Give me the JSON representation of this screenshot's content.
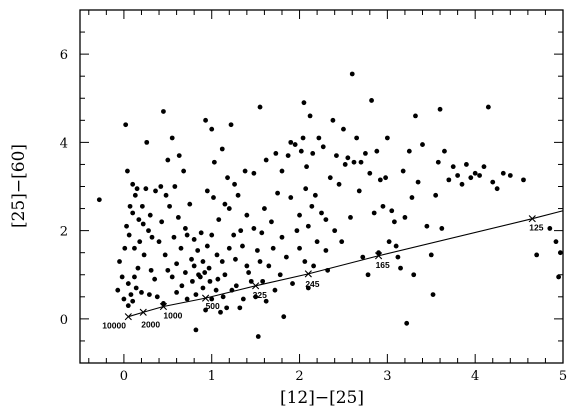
{
  "chart_data": {
    "type": "scatter",
    "title": "",
    "xlabel": "[12]−[25]",
    "ylabel": "[25]−[60]",
    "xlim": [
      -0.5,
      5
    ],
    "ylim": [
      -1,
      7
    ],
    "xticks": [
      0,
      1,
      2,
      3,
      4,
      5
    ],
    "yticks": [
      0,
      2,
      4,
      6
    ],
    "grid": false,
    "legend": "none",
    "points": [
      [
        -0.28,
        2.7
      ],
      [
        -0.07,
        0.65
      ],
      [
        -0.05,
        1.3
      ],
      [
        -0.02,
        0.95
      ],
      [
        0.0,
        0.45
      ],
      [
        0.01,
        1.6
      ],
      [
        0.02,
        4.4
      ],
      [
        0.03,
        2.1
      ],
      [
        0.04,
        3.35
      ],
      [
        0.05,
        0.3
      ],
      [
        0.05,
        0.8
      ],
      [
        0.06,
        1.9
      ],
      [
        0.07,
        2.55
      ],
      [
        0.08,
        0.55
      ],
      [
        0.1,
        0.4
      ],
      [
        0.1,
        2.4
      ],
      [
        0.1,
        3.05
      ],
      [
        0.12,
        0.95
      ],
      [
        0.12,
        1.6
      ],
      [
        0.13,
        2.8
      ],
      [
        0.14,
        0.7
      ],
      [
        0.15,
        2.95
      ],
      [
        0.16,
        1.15
      ],
      [
        0.17,
        2.25
      ],
      [
        0.18,
        1.75
      ],
      [
        0.2,
        0.6
      ],
      [
        0.21,
        2.55
      ],
      [
        0.22,
        2.15
      ],
      [
        0.23,
        1.45
      ],
      [
        0.25,
        2.95
      ],
      [
        0.26,
        4.0
      ],
      [
        0.28,
        2.0
      ],
      [
        0.29,
        0.55
      ],
      [
        0.3,
        2.35
      ],
      [
        0.31,
        1.1
      ],
      [
        0.32,
        1.85
      ],
      [
        0.35,
        0.9
      ],
      [
        0.36,
        2.9
      ],
      [
        0.38,
        0.5
      ],
      [
        0.4,
        1.75
      ],
      [
        0.42,
        3.0
      ],
      [
        0.43,
        2.2
      ],
      [
        0.45,
        4.7
      ],
      [
        0.45,
        0.35
      ],
      [
        0.47,
        1.45
      ],
      [
        0.48,
        2.8
      ],
      [
        0.5,
        1.1
      ],
      [
        0.5,
        3.6
      ],
      [
        0.52,
        2.55
      ],
      [
        0.55,
        0.95
      ],
      [
        0.55,
        4.1
      ],
      [
        0.57,
        1.85
      ],
      [
        0.58,
        3.0
      ],
      [
        0.6,
        1.25
      ],
      [
        0.6,
        0.6
      ],
      [
        0.62,
        2.3
      ],
      [
        0.63,
        3.7
      ],
      [
        0.65,
        1.6
      ],
      [
        0.66,
        0.75
      ],
      [
        0.68,
        3.35
      ],
      [
        0.7,
        1.05
      ],
      [
        0.7,
        2.05
      ],
      [
        0.72,
        0.45
      ],
      [
        0.72,
        1.9
      ],
      [
        0.75,
        2.6
      ],
      [
        0.77,
        1.35
      ],
      [
        0.78,
        0.85
      ],
      [
        0.8,
        1.8
      ],
      [
        0.8,
        1.2
      ],
      [
        0.82,
        -0.25
      ],
      [
        0.82,
        0.55
      ],
      [
        0.84,
        1.55
      ],
      [
        0.85,
        1.0
      ],
      [
        0.87,
        0.95
      ],
      [
        0.88,
        1.95
      ],
      [
        0.9,
        1.3
      ],
      [
        0.9,
        0.7
      ],
      [
        0.92,
        1.05
      ],
      [
        0.93,
        0.2
      ],
      [
        0.93,
        4.5
      ],
      [
        0.95,
        2.9
      ],
      [
        0.95,
        1.65
      ],
      [
        0.97,
        1.15
      ],
      [
        0.98,
        0.85
      ],
      [
        1.0,
        4.3
      ],
      [
        1.0,
        0.45
      ],
      [
        1.0,
        1.9
      ],
      [
        1.02,
        2.75
      ],
      [
        1.03,
        3.55
      ],
      [
        1.05,
        0.65
      ],
      [
        1.06,
        1.45
      ],
      [
        1.07,
        0.9
      ],
      [
        1.08,
        2.25
      ],
      [
        1.1,
        0.15
      ],
      [
        1.12,
        3.85
      ],
      [
        1.12,
        1.3
      ],
      [
        1.13,
        0.5
      ],
      [
        1.15,
        2.6
      ],
      [
        1.15,
        1.0
      ],
      [
        1.17,
        0.25
      ],
      [
        1.18,
        3.2
      ],
      [
        1.2,
        2.5
      ],
      [
        1.2,
        1.6
      ],
      [
        1.22,
        4.4
      ],
      [
        1.23,
        0.65
      ],
      [
        1.25,
        1.9
      ],
      [
        1.26,
        3.05
      ],
      [
        1.27,
        1.35
      ],
      [
        1.28,
        0.75
      ],
      [
        1.3,
        2.8
      ],
      [
        1.32,
        0.25
      ],
      [
        1.33,
        2.0
      ],
      [
        1.35,
        1.65
      ],
      [
        1.36,
        0.45
      ],
      [
        1.38,
        3.35
      ],
      [
        1.4,
        2.35
      ],
      [
        1.4,
        1.2
      ],
      [
        1.42,
        1.05
      ],
      [
        1.45,
        0.85
      ],
      [
        1.48,
        3.3
      ],
      [
        1.48,
        2.05
      ],
      [
        1.5,
        0.5
      ],
      [
        1.52,
        1.55
      ],
      [
        1.53,
        -0.4
      ],
      [
        1.55,
        4.8
      ],
      [
        1.55,
        1.3
      ],
      [
        1.57,
        1.95
      ],
      [
        1.58,
        0.85
      ],
      [
        1.6,
        2.5
      ],
      [
        1.62,
        3.6
      ],
      [
        1.62,
        0.4
      ],
      [
        1.65,
        1.2
      ],
      [
        1.68,
        2.2
      ],
      [
        1.7,
        1.6
      ],
      [
        1.72,
        0.65
      ],
      [
        1.73,
        3.75
      ],
      [
        1.75,
        2.85
      ],
      [
        1.78,
        1.0
      ],
      [
        1.8,
        1.85
      ],
      [
        1.8,
        3.35
      ],
      [
        1.82,
        0.05
      ],
      [
        1.85,
        1.4
      ],
      [
        1.87,
        3.7
      ],
      [
        1.9,
        2.75
      ],
      [
        1.9,
        4.0
      ],
      [
        1.92,
        0.8
      ],
      [
        1.95,
        3.95
      ],
      [
        1.97,
        2.0
      ],
      [
        2.0,
        1.6
      ],
      [
        2.0,
        2.35
      ],
      [
        2.02,
        3.8
      ],
      [
        2.04,
        4.1
      ],
      [
        2.05,
        4.9
      ],
      [
        2.06,
        1.3
      ],
      [
        2.07,
        2.95
      ],
      [
        2.08,
        3.45
      ],
      [
        2.1,
        2.1
      ],
      [
        2.1,
        0.7
      ],
      [
        2.12,
        4.6
      ],
      [
        2.14,
        2.55
      ],
      [
        2.15,
        3.75
      ],
      [
        2.16,
        1.2
      ],
      [
        2.18,
        2.8
      ],
      [
        2.2,
        1.75
      ],
      [
        2.22,
        4.1
      ],
      [
        2.25,
        2.4
      ],
      [
        2.27,
        3.9
      ],
      [
        2.3,
        1.55
      ],
      [
        2.3,
        2.25
      ],
      [
        2.32,
        1.1
      ],
      [
        2.35,
        3.2
      ],
      [
        2.38,
        4.5
      ],
      [
        2.4,
        2.0
      ],
      [
        2.42,
        3.7
      ],
      [
        2.45,
        3.05
      ],
      [
        2.48,
        1.75
      ],
      [
        2.5,
        4.3
      ],
      [
        2.52,
        3.5
      ],
      [
        2.55,
        3.65
      ],
      [
        2.58,
        2.3
      ],
      [
        2.6,
        5.55
      ],
      [
        2.62,
        3.55
      ],
      [
        2.65,
        4.1
      ],
      [
        2.68,
        2.9
      ],
      [
        2.7,
        3.55
      ],
      [
        2.72,
        1.4
      ],
      [
        2.75,
        3.75
      ],
      [
        2.78,
        1.0
      ],
      [
        2.8,
        3.3
      ],
      [
        2.82,
        4.95
      ],
      [
        2.85,
        2.4
      ],
      [
        2.88,
        3.8
      ],
      [
        2.9,
        1.5
      ],
      [
        2.92,
        3.15
      ],
      [
        2.95,
        2.55
      ],
      [
        2.98,
        3.2
      ],
      [
        3.0,
        4.1
      ],
      [
        3.02,
        1.75
      ],
      [
        3.05,
        2.45
      ],
      [
        3.08,
        2.2
      ],
      [
        3.1,
        1.65
      ],
      [
        3.12,
        1.4
      ],
      [
        3.15,
        1.15
      ],
      [
        3.18,
        3.35
      ],
      [
        3.2,
        2.3
      ],
      [
        3.22,
        -0.1
      ],
      [
        3.25,
        3.8
      ],
      [
        3.28,
        2.75
      ],
      [
        3.3,
        1.0
      ],
      [
        3.32,
        4.6
      ],
      [
        3.35,
        3.1
      ],
      [
        3.4,
        3.95
      ],
      [
        3.45,
        2.1
      ],
      [
        3.5,
        1.45
      ],
      [
        3.52,
        0.55
      ],
      [
        3.55,
        2.8
      ],
      [
        3.58,
        3.55
      ],
      [
        3.6,
        4.75
      ],
      [
        3.62,
        2.05
      ],
      [
        3.65,
        3.8
      ],
      [
        3.7,
        3.15
      ],
      [
        3.75,
        3.45
      ],
      [
        3.8,
        3.25
      ],
      [
        3.85,
        3.05
      ],
      [
        3.9,
        3.5
      ],
      [
        3.95,
        3.2
      ],
      [
        4.0,
        3.3
      ],
      [
        4.05,
        3.25
      ],
      [
        4.1,
        3.45
      ],
      [
        4.15,
        4.8
      ],
      [
        4.2,
        3.1
      ],
      [
        4.25,
        2.95
      ],
      [
        4.32,
        3.3
      ],
      [
        4.4,
        3.25
      ],
      [
        4.55,
        3.15
      ],
      [
        4.7,
        1.45
      ],
      [
        4.85,
        2.05
      ],
      [
        4.92,
        1.75
      ],
      [
        4.95,
        0.95
      ],
      [
        4.97,
        1.5
      ]
    ],
    "temperature_track": {
      "points": [
        {
          "label": "10000",
          "x": 0.05,
          "y": 0.05
        },
        {
          "label": "2000",
          "x": 0.22,
          "y": 0.15
        },
        {
          "label": "1000",
          "x": 0.45,
          "y": 0.28
        },
        {
          "label": "500",
          "x": 0.93,
          "y": 0.47
        },
        {
          "label": "325",
          "x": 1.5,
          "y": 0.75
        },
        {
          "label": "245",
          "x": 2.1,
          "y": 1.02
        },
        {
          "label": "165",
          "x": 2.9,
          "y": 1.43
        },
        {
          "label": "125",
          "x": 4.65,
          "y": 2.27
        }
      ],
      "line_end": {
        "x": 5,
        "y": 2.45
      }
    }
  }
}
